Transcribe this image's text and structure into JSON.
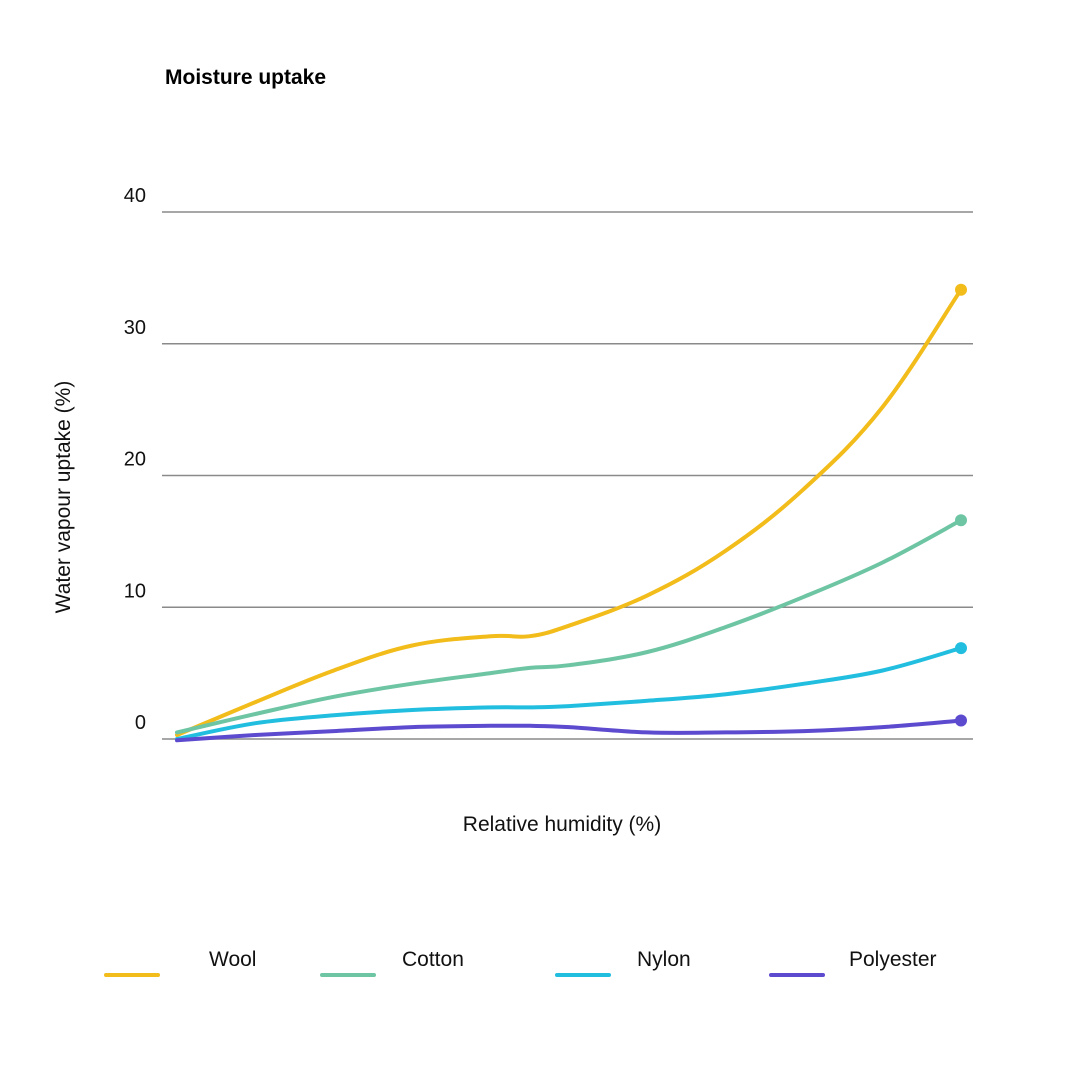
{
  "chart_data": {
    "type": "line",
    "title": "Moisture uptake",
    "xlabel": "Relative humidity (%)",
    "ylabel": "Water vapour uptake (%)",
    "ylim": [
      0,
      40
    ],
    "yticks": [
      "0",
      "10",
      "20",
      "30",
      "40"
    ],
    "x": [
      0,
      10,
      20,
      30,
      40,
      45,
      50,
      60,
      70,
      80,
      90,
      100
    ],
    "grid": true,
    "legend_position": "bottom",
    "series": [
      {
        "name": "Wool",
        "color": "#F2BC1B",
        "values": [
          0.3,
          2.8,
          5.2,
          7.1,
          7.8,
          7.8,
          8.6,
          10.9,
          14.3,
          19.0,
          25.2,
          34.1
        ]
      },
      {
        "name": "Cotton",
        "color": "#6EC5A4",
        "values": [
          0.5,
          1.9,
          3.2,
          4.2,
          5.0,
          5.4,
          5.6,
          6.6,
          8.5,
          10.8,
          13.4,
          16.6
        ]
      },
      {
        "name": "Nylon",
        "color": "#22BEE0",
        "values": [
          0.0,
          1.2,
          1.8,
          2.2,
          2.4,
          2.4,
          2.5,
          2.9,
          3.4,
          4.2,
          5.2,
          6.9
        ]
      },
      {
        "name": "Polyester",
        "color": "#5D4BCF",
        "values": [
          -0.1,
          0.3,
          0.6,
          0.9,
          1.0,
          1.0,
          0.9,
          0.5,
          0.5,
          0.6,
          0.9,
          1.4
        ]
      }
    ]
  },
  "legend": [
    {
      "label": "Wool",
      "color": "#F2BC1B"
    },
    {
      "label": "Cotton",
      "color": "#6EC5A4"
    },
    {
      "label": "Nylon",
      "color": "#22BEE0"
    },
    {
      "label": "Polyester",
      "color": "#5D4BCF"
    }
  ]
}
